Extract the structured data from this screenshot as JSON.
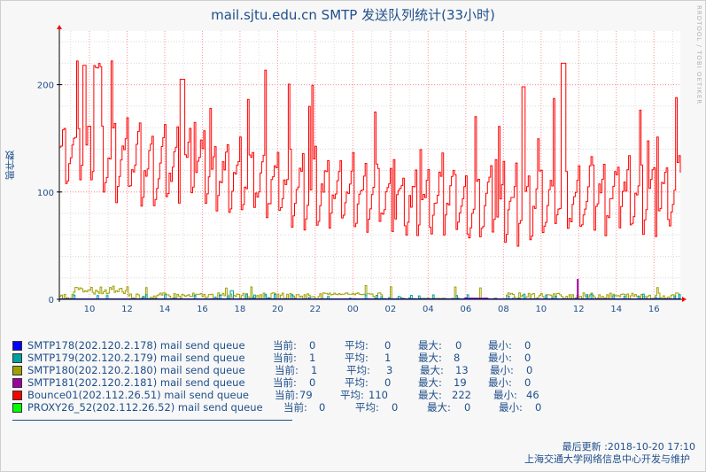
{
  "chart_data": {
    "type": "line",
    "title": "mail.sjtu.edu.cn SMTP 发送队列统计(33小时)",
    "ylabel": "邮件数",
    "ylim": [
      0,
      250
    ],
    "yticks": [
      0,
      100,
      200
    ],
    "x_tick_labels": [
      "10",
      "12",
      "14",
      "16",
      "18",
      "20",
      "22",
      "00",
      "02",
      "04",
      "06",
      "08",
      "10",
      "12",
      "14",
      "16"
    ],
    "x_range_hours": [
      8.4,
      41.4
    ],
    "grid": true,
    "series": [
      {
        "name": "SMTP178(202.120.2.178) mail send queue",
        "color": "#0000ff",
        "cur": "0",
        "avg": "0",
        "max": "0",
        "min": "0"
      },
      {
        "name": "SMTP179(202.120.2.179) mail send queue",
        "color": "#00a0a0",
        "cur": "1",
        "avg": "1",
        "max": "8",
        "min": "0"
      },
      {
        "name": "SMTP180(202.120.2.180) mail send queue",
        "color": "#a0a000",
        "cur": "1",
        "avg": "3",
        "max": "13",
        "min": "0"
      },
      {
        "name": "SMTP181(202.120.2.181) mail send queue",
        "color": "#a000a0",
        "cur": "0",
        "avg": "0",
        "max": "19",
        "min": "0"
      },
      {
        "name": "Bounce01(202.112.26.51) mail send queue",
        "color": "#ff0000",
        "cur": "79",
        "avg": "110",
        "max": "222",
        "min": "46"
      },
      {
        "name": "PROXY26_52(202.112.26.52) mail send queue",
        "color": "#00ff00",
        "cur": "0",
        "avg": "0",
        "max": "0",
        "min": "0"
      }
    ],
    "stat_labels": {
      "cur": "当前:",
      "avg": "平均:",
      "max": "最大:",
      "min": "最小:"
    }
  },
  "side_credit": "RRDTOOL / TOBI OETIKER",
  "footer": {
    "updated": "最后更新 :2018-10-20 17:10",
    "maintainer": "上海交通大学网络信息中心开发与维护"
  }
}
